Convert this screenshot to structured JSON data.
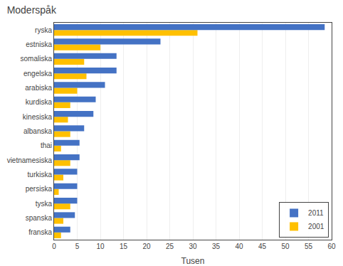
{
  "chart_data": {
    "type": "bar",
    "orientation": "horizontal",
    "title": "Moderspåk",
    "xlabel": "Tusen",
    "categories": [
      "franska",
      "spanska",
      "tyska",
      "persiska",
      "turkiska",
      "vietnamesiska",
      "thai",
      "albanska",
      "kinesiska",
      "kurdiska",
      "arabiska",
      "engelska",
      "somaliska",
      "estniska",
      "ryska"
    ],
    "series": [
      {
        "name": "2011",
        "color": "#4472C4",
        "values": [
          3.5,
          4.5,
          5.0,
          5.0,
          5.0,
          5.5,
          5.5,
          6.5,
          8.5,
          9.0,
          11.0,
          13.5,
          13.5,
          23.0,
          58.5
        ]
      },
      {
        "name": "2001",
        "color": "#FFC000",
        "values": [
          1.5,
          2.0,
          3.5,
          1.0,
          2.0,
          3.5,
          1.5,
          3.5,
          3.0,
          3.5,
          5.0,
          7.0,
          6.5,
          10.0,
          31.0
        ]
      }
    ],
    "xlim": [
      0,
      60
    ],
    "xticks": [
      0,
      5,
      10,
      15,
      20,
      25,
      30,
      35,
      40,
      45,
      50,
      55,
      60
    ],
    "grid": true,
    "legend": "lower right"
  }
}
